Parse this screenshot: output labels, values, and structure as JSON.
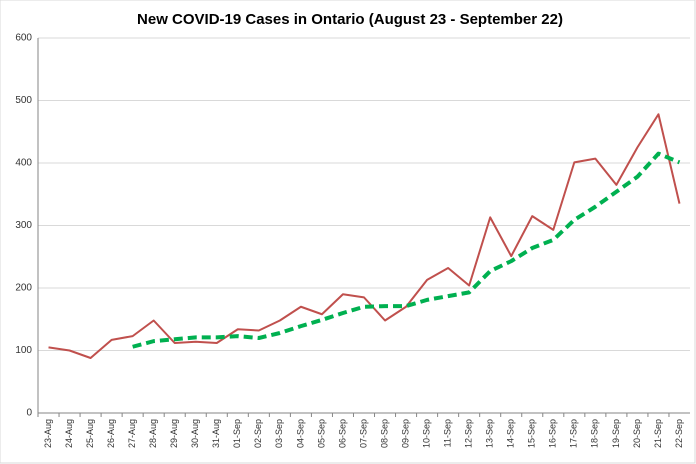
{
  "chart_data": {
    "type": "line",
    "title": "New COVID-19 Cases in Ontario (August 23 - September 22)",
    "categories": [
      "23-Aug",
      "24-Aug",
      "25-Aug",
      "26-Aug",
      "27-Aug",
      "28-Aug",
      "29-Aug",
      "30-Aug",
      "31-Aug",
      "01-Sep",
      "02-Sep",
      "03-Sep",
      "04-Sep",
      "05-Sep",
      "06-Sep",
      "07-Sep",
      "08-Sep",
      "09-Sep",
      "10-Sep",
      "11-Sep",
      "12-Sep",
      "13-Sep",
      "14-Sep",
      "15-Sep",
      "16-Sep",
      "17-Sep",
      "18-Sep",
      "19-Sep",
      "20-Sep",
      "21-Sep",
      "22-Sep"
    ],
    "series": [
      {
        "color": "#c0504d",
        "dash": false,
        "values": [
          105,
          100,
          88,
          117,
          123,
          148,
          112,
          114,
          112,
          134,
          132,
          148,
          170,
          158,
          190,
          185,
          148,
          170,
          213,
          232,
          204,
          313,
          251,
          315,
          293,
          401,
          407,
          365,
          425,
          478,
          335
        ]
      },
      {
        "color": "#00b050",
        "dash": true,
        "values": [
          null,
          null,
          null,
          null,
          106,
          115,
          118,
          121,
          121,
          123,
          120,
          128,
          139,
          149,
          160,
          170,
          171,
          171,
          181,
          187,
          193,
          227,
          243,
          264,
          277,
          309,
          330,
          354,
          378,
          415,
          401
        ]
      }
    ],
    "ylim": [
      0,
      600
    ],
    "yticks": [
      0,
      100,
      200,
      300,
      400,
      500,
      600
    ],
    "grid": true
  }
}
